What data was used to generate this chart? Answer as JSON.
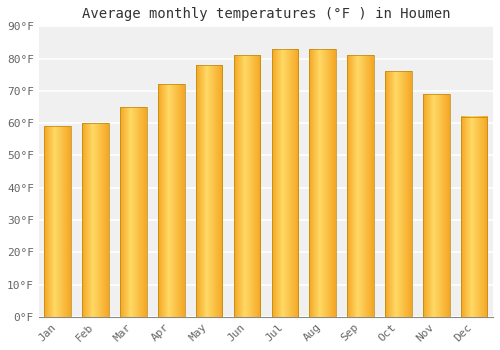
{
  "title": "Average monthly temperatures (°F ) in Houmen",
  "months": [
    "Jan",
    "Feb",
    "Mar",
    "Apr",
    "May",
    "Jun",
    "Jul",
    "Aug",
    "Sep",
    "Oct",
    "Nov",
    "Dec"
  ],
  "values": [
    59,
    60,
    65,
    72,
    78,
    81,
    83,
    83,
    81,
    76,
    69,
    62
  ],
  "bar_color_light": "#FFD966",
  "bar_color_dark": "#F5A623",
  "bar_edge_color": "#B8860B",
  "background_color": "#FFFFFF",
  "plot_bg_color": "#F0F0F0",
  "grid_color": "#FFFFFF",
  "ylim": [
    0,
    90
  ],
  "yticks": [
    0,
    10,
    20,
    30,
    40,
    50,
    60,
    70,
    80,
    90
  ],
  "ytick_labels": [
    "0°F",
    "10°F",
    "20°F",
    "30°F",
    "40°F",
    "50°F",
    "60°F",
    "70°F",
    "80°F",
    "90°F"
  ],
  "title_fontsize": 10,
  "tick_fontsize": 8,
  "tick_color": "#666666",
  "title_color": "#333333",
  "font_family": "monospace",
  "bar_width": 0.7
}
